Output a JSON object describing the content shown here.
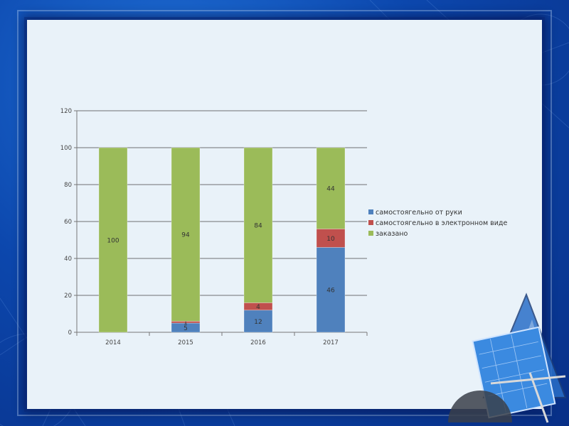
{
  "colors": {
    "blue": "#4f81bd",
    "red": "#c0504d",
    "green": "#9bbb59"
  },
  "chart_data": {
    "type": "bar",
    "stacked": true,
    "categories": [
      "2014",
      "2015",
      "2016",
      "2017"
    ],
    "series": [
      {
        "name": "самостоягельно от руки",
        "values": [
          0,
          5,
          12,
          46
        ],
        "labels": [
          "",
          "5",
          "12",
          "46"
        ],
        "color": "#4f81bd"
      },
      {
        "name": "самостоягельно в электронном виде",
        "values": [
          0,
          1,
          4,
          10
        ],
        "labels": [
          "",
          "1",
          "4",
          "10"
        ],
        "color": "#c0504d"
      },
      {
        "name": "заказано",
        "values": [
          100,
          94,
          84,
          44
        ],
        "labels": [
          "100",
          "94",
          "84",
          "44"
        ],
        "color": "#9bbb59"
      }
    ],
    "ylim": [
      0,
      120
    ],
    "yticks": [
      0,
      20,
      40,
      60,
      80,
      100,
      120
    ],
    "grid": true,
    "legend_position": "right"
  }
}
